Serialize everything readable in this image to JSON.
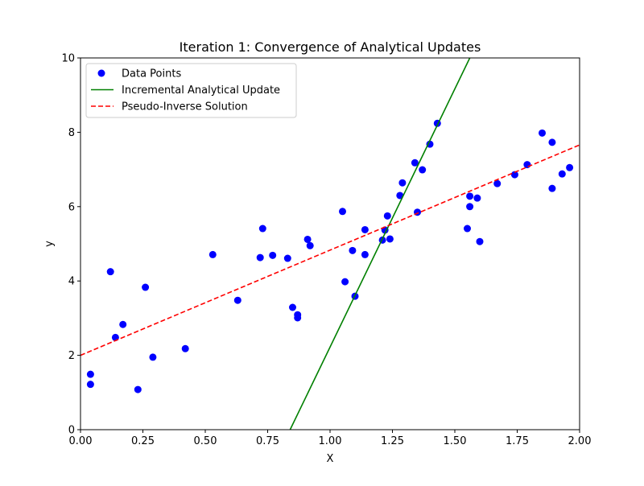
{
  "chart_data": {
    "type": "scatter",
    "title": "Iteration 1: Convergence of Analytical Updates",
    "xlabel": "X",
    "ylabel": "y",
    "xlim": [
      0,
      2
    ],
    "ylim": [
      0,
      10
    ],
    "xticks": [
      "0.00",
      "0.25",
      "0.50",
      "0.75",
      "1.00",
      "1.25",
      "1.50",
      "1.75",
      "2.00"
    ],
    "yticks": [
      "0",
      "2",
      "4",
      "6",
      "8",
      "10"
    ],
    "grid": false,
    "legend_position": "top-left",
    "series": [
      {
        "name": "Data Points",
        "kind": "scatter",
        "color": "#0000ff",
        "points": [
          [
            0.04,
            1.22
          ],
          [
            0.04,
            1.49
          ],
          [
            0.12,
            4.25
          ],
          [
            0.14,
            2.48
          ],
          [
            0.17,
            2.83
          ],
          [
            0.23,
            1.08
          ],
          [
            0.26,
            3.83
          ],
          [
            0.29,
            1.95
          ],
          [
            0.42,
            2.18
          ],
          [
            0.53,
            4.71
          ],
          [
            0.63,
            3.48
          ],
          [
            0.72,
            4.63
          ],
          [
            0.73,
            5.41
          ],
          [
            0.77,
            4.69
          ],
          [
            0.83,
            4.61
          ],
          [
            0.85,
            3.29
          ],
          [
            0.87,
            3.09
          ],
          [
            0.87,
            3.01
          ],
          [
            0.91,
            5.12
          ],
          [
            0.92,
            4.95
          ],
          [
            1.05,
            5.87
          ],
          [
            1.06,
            3.98
          ],
          [
            1.09,
            4.82
          ],
          [
            1.1,
            3.59
          ],
          [
            1.14,
            5.38
          ],
          [
            1.14,
            4.71
          ],
          [
            1.21,
            5.1
          ],
          [
            1.22,
            5.37
          ],
          [
            1.23,
            5.75
          ],
          [
            1.24,
            5.13
          ],
          [
            1.28,
            6.3
          ],
          [
            1.29,
            6.64
          ],
          [
            1.34,
            7.18
          ],
          [
            1.35,
            5.85
          ],
          [
            1.37,
            6.99
          ],
          [
            1.4,
            7.68
          ],
          [
            1.43,
            8.24
          ],
          [
            1.55,
            5.41
          ],
          [
            1.56,
            6.0
          ],
          [
            1.56,
            6.28
          ],
          [
            1.59,
            6.23
          ],
          [
            1.6,
            5.06
          ],
          [
            1.67,
            6.62
          ],
          [
            1.74,
            6.86
          ],
          [
            1.79,
            7.13
          ],
          [
            1.85,
            7.98
          ],
          [
            1.89,
            6.49
          ],
          [
            1.89,
            7.73
          ],
          [
            1.93,
            6.88
          ],
          [
            1.96,
            7.05
          ]
        ]
      },
      {
        "name": "Incremental Analytical Update",
        "kind": "line",
        "color": "#008000",
        "style": "solid",
        "points": [
          [
            0.84,
            0.0
          ],
          [
            1.56,
            10.0
          ]
        ]
      },
      {
        "name": "Pseudo-Inverse Solution",
        "kind": "line",
        "color": "#ff0000",
        "style": "dashed",
        "points": [
          [
            0.0,
            2.0
          ],
          [
            2.0,
            7.66
          ]
        ]
      }
    ]
  }
}
